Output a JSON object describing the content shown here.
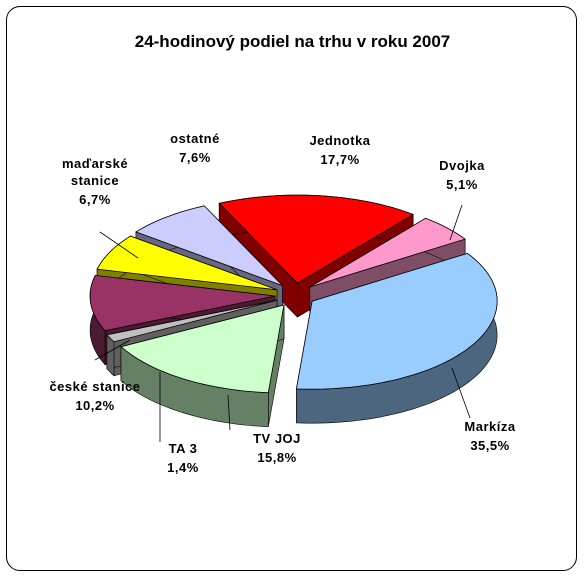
{
  "chart_data": {
    "type": "pie",
    "title": "24-hodinový podiel na trhu v roku 2007",
    "categories": [
      "Jednotka",
      "Dvojka",
      "Markíza",
      "TV JOJ",
      "TA 3",
      "české stanice",
      "maďarské stanice",
      "ostatné"
    ],
    "values": [
      17.7,
      5.1,
      35.5,
      15.8,
      1.4,
      10.2,
      6.7,
      7.6
    ],
    "value_labels": [
      "17,7%",
      "5,1%",
      "35,5%",
      "15,8%",
      "1,4%",
      "10,2%",
      "6,7%",
      "7,6%"
    ],
    "colors": [
      "#ff0000",
      "#ff99cc",
      "#99ccff",
      "#ccffcc",
      "#c0c0c0",
      "#993366",
      "#ffff00",
      "#ccccff"
    ]
  }
}
